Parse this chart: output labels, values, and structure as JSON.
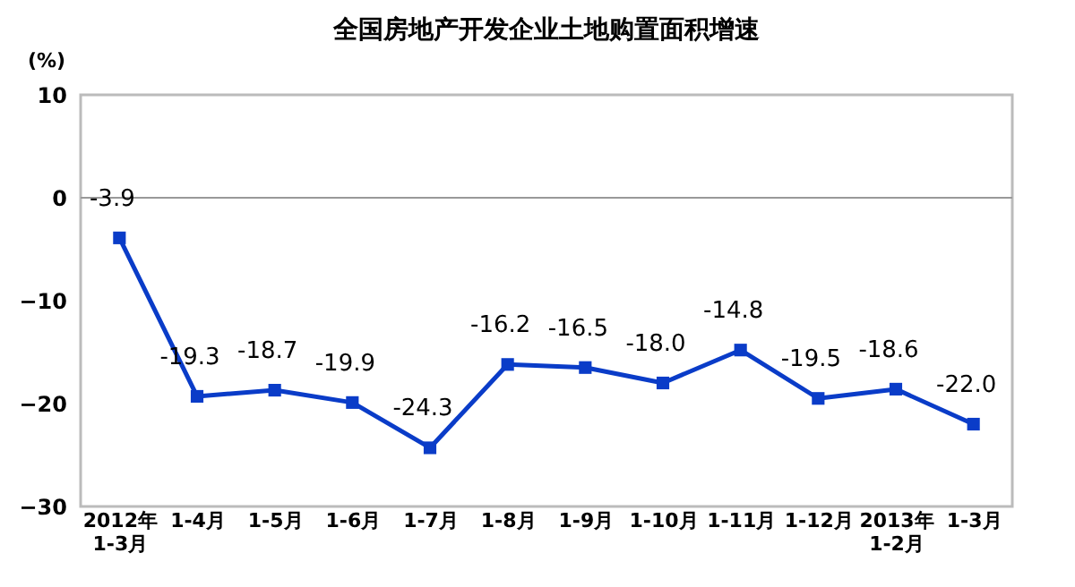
{
  "chart_data": {
    "type": "line",
    "title": "全国房地产开发企业土地购置面积增速",
    "ylabel": "(%)",
    "categories": [
      "2012年\n1-3月",
      "1-4月",
      "1-5月",
      "1-6月",
      "1-7月",
      "1-8月",
      "1-9月",
      "1-10月",
      "1-11月",
      "1-12月",
      "2013年\n1-2月",
      "1-3月"
    ],
    "series": [
      {
        "color": "#0a3cc8",
        "values": [
          -3.9,
          -19.3,
          -18.7,
          -19.9,
          -24.3,
          -16.2,
          -16.5,
          -18.0,
          -14.8,
          -19.5,
          -18.6,
          -22.0
        ],
        "value_labels": [
          "-3.9",
          "-19.3",
          "-18.7",
          "-19.9",
          "-24.3",
          "-16.2",
          "-16.5",
          "-18.0",
          "-14.8",
          "-19.5",
          "-18.6",
          "-22.0"
        ]
      }
    ],
    "ylim": [
      -30,
      10
    ],
    "yticks": [
      -30,
      -20,
      -10,
      0,
      10
    ],
    "grid": false,
    "marker": "square",
    "line_style": "solid",
    "ref_lines": [
      {
        "axis": "y",
        "value": 0,
        "color": "#999999"
      }
    ]
  }
}
